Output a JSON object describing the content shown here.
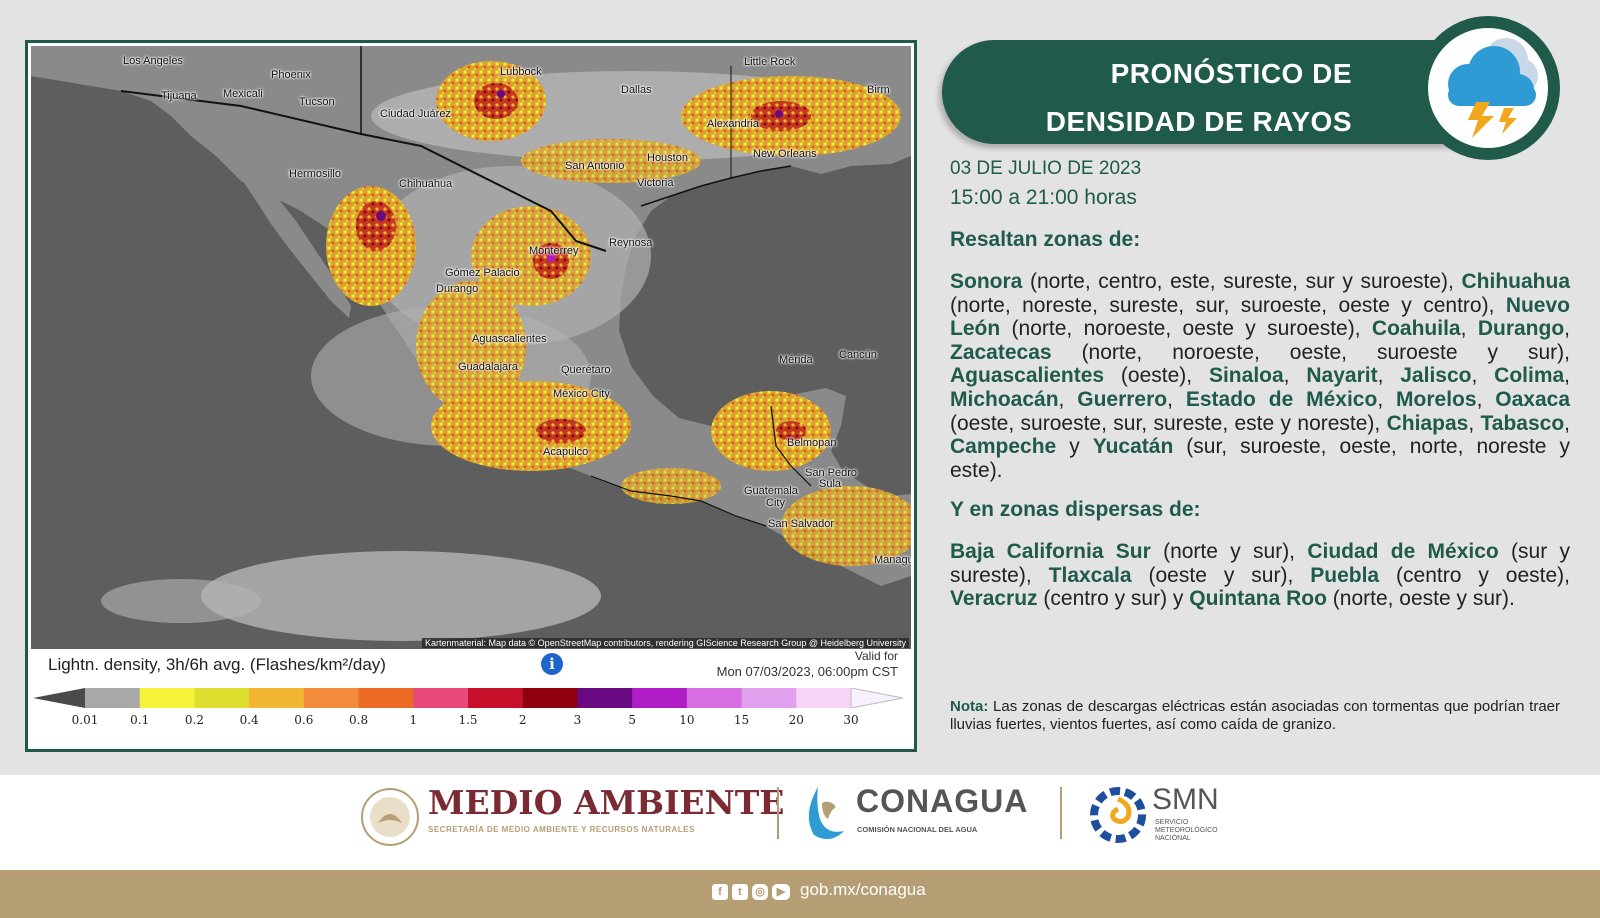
{
  "title_lines": [
    "PRONÓSTICO DE",
    "DENSIDAD DE RAYOS"
  ],
  "date": "03 DE JULIO DE 2023",
  "hours": "15:00 a 21:00 horas",
  "section_main": "Resaltan zonas de:",
  "section_dispersed": "Y en zonas dispersas de:",
  "main_segments": [
    {
      "t": "Sonora",
      "b": true
    },
    {
      "t": " (norte, centro, este, sureste, sur y suroeste), ",
      "b": false
    },
    {
      "t": "Chihuahua",
      "b": true
    },
    {
      "t": " (norte, noreste, sureste, sur, suroeste, oeste y centro), ",
      "b": false
    },
    {
      "t": "Nuevo León",
      "b": true
    },
    {
      "t": " (norte, noroeste, oeste y suroeste), ",
      "b": false
    },
    {
      "t": "Coahuila",
      "b": true
    },
    {
      "t": ", ",
      "b": false
    },
    {
      "t": "Durango",
      "b": true
    },
    {
      "t": ", ",
      "b": false
    },
    {
      "t": "Zacatecas",
      "b": true
    },
    {
      "t": " (norte, noroeste, oeste, suroeste y sur), ",
      "b": false
    },
    {
      "t": "Aguascalientes",
      "b": true
    },
    {
      "t": " (oeste), ",
      "b": false
    },
    {
      "t": "Sinaloa",
      "b": true
    },
    {
      "t": ", ",
      "b": false
    },
    {
      "t": "Nayarit",
      "b": true
    },
    {
      "t": ", ",
      "b": false
    },
    {
      "t": "Jalisco",
      "b": true
    },
    {
      "t": ", ",
      "b": false
    },
    {
      "t": "Colima",
      "b": true
    },
    {
      "t": ", ",
      "b": false
    },
    {
      "t": "Michoacán",
      "b": true
    },
    {
      "t": ", ",
      "b": false
    },
    {
      "t": "Guerrero",
      "b": true
    },
    {
      "t": ", ",
      "b": false
    },
    {
      "t": "Estado de México",
      "b": true
    },
    {
      "t": ", ",
      "b": false
    },
    {
      "t": "Morelos",
      "b": true
    },
    {
      "t": ", ",
      "b": false
    },
    {
      "t": "Oaxaca",
      "b": true
    },
    {
      "t": " (oeste, suroeste, sur, sureste, este y noreste), ",
      "b": false
    },
    {
      "t": "Chiapas",
      "b": true
    },
    {
      "t": ", ",
      "b": false
    },
    {
      "t": "Tabasco",
      "b": true
    },
    {
      "t": ", ",
      "b": false
    },
    {
      "t": "Campeche",
      "b": true
    },
    {
      "t": " y ",
      "b": false
    },
    {
      "t": "Yucatán",
      "b": true
    },
    {
      "t": " (sur, suroeste, oeste, norte, noreste y este).",
      "b": false
    }
  ],
  "dispersed_segments": [
    {
      "t": "Baja California Sur",
      "b": true
    },
    {
      "t": " (norte y sur), ",
      "b": false
    },
    {
      "t": "Ciudad de México",
      "b": true
    },
    {
      "t": " (sur y sureste), ",
      "b": false
    },
    {
      "t": "Tlaxcala",
      "b": true
    },
    {
      "t": " (oeste y sur), ",
      "b": false
    },
    {
      "t": "Puebla",
      "b": true
    },
    {
      "t": " (centro y oeste), ",
      "b": false
    },
    {
      "t": "Veracruz",
      "b": true
    },
    {
      "t": " (centro y sur) y ",
      "b": false
    },
    {
      "t": "Quintana Roo",
      "b": true
    },
    {
      "t": " (norte, oeste y sur).",
      "b": false
    }
  ],
  "note_label": "Nota:",
  "note_text": " Las zonas de descargas eléctricas están asociadas con tormentas que podrían traer lluvias fuertes, vientos fuertes, así como caída de granizo.",
  "map": {
    "cities": [
      "Los Angeles",
      "Phoenix",
      "Tijuana",
      "Mexicali",
      "Tucson",
      "Lubbock",
      "Little Rock",
      "Birm",
      "Dallas",
      "Ciudad Juárez",
      "Alexandria",
      "Houston",
      "New Orleans",
      "San Antonio",
      "Victoria",
      "Hermosillo",
      "Chihuahua",
      "Reynosa",
      "Monterrey",
      "Gómez Palacio",
      "Durango",
      "Aguascalientes",
      "Guadalajara",
      "Querétaro",
      "México City",
      "Mérida",
      "Cancún",
      "Acapulco",
      "Belmopan",
      "San Pedro",
      "Sula",
      "Guatemala",
      "City",
      "San Salvador",
      "Managu"
    ],
    "attribution": "Kartenmaterial: Map data © OpenStreetMap contributors, rendering GIScience Research Group @ Heidelberg University",
    "legend_title": "Lightn. density, 3h/6h avg. (Flashes/km²/day)",
    "info_glyph": "i",
    "valid_label": "Valid for",
    "valid_time": "Mon 07/03/2023, 06:00pm CST",
    "legend_ticks": [
      "0.01",
      "0.1",
      "0.2",
      "0.4",
      "0.6",
      "0.8",
      "1",
      "1.5",
      "2",
      "3",
      "5",
      "10",
      "15",
      "20",
      "30"
    ],
    "legend_colors": [
      "#a8a8a8",
      "#f6f23a",
      "#dede2e",
      "#f2b631",
      "#f28c3c",
      "#ea6a26",
      "#e8487a",
      "#c7102a",
      "#8e0010",
      "#6a0a82",
      "#b01cc6",
      "#d66de2",
      "#e0a0ee",
      "#f6d4f8"
    ],
    "legend_end_colors": [
      "#4a4a4a",
      "#f8f0fc"
    ]
  },
  "logos": {
    "medio_ambiente": "MEDIO AMBIENTE",
    "medio_ambiente_sub": "SECRETARÍA DE MEDIO AMBIENTE Y RECURSOS NATURALES",
    "conagua": "CONAGUA",
    "conagua_sub": "COMISIÓN NACIONAL DEL AGUA",
    "smn": "SMN",
    "smn_sub": [
      "SERVICIO",
      "METEOROLÓGICO",
      "NACIONAL"
    ]
  },
  "footer": {
    "social_icons": [
      "facebook-icon",
      "twitter-icon",
      "instagram-icon",
      "youtube-icon"
    ],
    "url": "gob.mx/conagua"
  },
  "colors": {
    "brand_green": "#1f5a4a",
    "footer_gold": "#b59e74",
    "brand_maroon": "#7a2a32"
  }
}
